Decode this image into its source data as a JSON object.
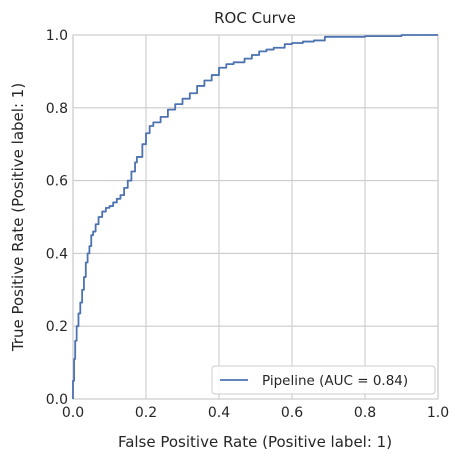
{
  "chart_data": {
    "type": "line",
    "title": "ROC Curve",
    "xlabel": "False Positive Rate (Positive label: 1)",
    "ylabel": "True Positive Rate (Positive label: 1)",
    "xlim": [
      0,
      1
    ],
    "ylim": [
      0,
      1
    ],
    "grid": true,
    "legend_position": "lower-right",
    "xticks": [
      "0.0",
      "0.2",
      "0.4",
      "0.6",
      "0.8",
      "1.0"
    ],
    "yticks": [
      "0.0",
      "0.2",
      "0.4",
      "0.6",
      "0.8",
      "1.0"
    ],
    "series": [
      {
        "name": "Pipeline (AUC = 0.84)",
        "color": "#4c72b0",
        "points": [
          [
            0.0,
            0.0
          ],
          [
            0.003,
            0.05
          ],
          [
            0.006,
            0.11
          ],
          [
            0.01,
            0.16
          ],
          [
            0.015,
            0.2
          ],
          [
            0.02,
            0.235
          ],
          [
            0.025,
            0.265
          ],
          [
            0.03,
            0.3
          ],
          [
            0.035,
            0.335
          ],
          [
            0.04,
            0.375
          ],
          [
            0.045,
            0.4
          ],
          [
            0.05,
            0.42
          ],
          [
            0.055,
            0.45
          ],
          [
            0.062,
            0.46
          ],
          [
            0.07,
            0.48
          ],
          [
            0.08,
            0.5
          ],
          [
            0.09,
            0.515
          ],
          [
            0.1,
            0.525
          ],
          [
            0.11,
            0.53
          ],
          [
            0.12,
            0.54
          ],
          [
            0.13,
            0.55
          ],
          [
            0.14,
            0.56
          ],
          [
            0.15,
            0.58
          ],
          [
            0.16,
            0.6
          ],
          [
            0.17,
            0.625
          ],
          [
            0.175,
            0.65
          ],
          [
            0.19,
            0.665
          ],
          [
            0.2,
            0.7
          ],
          [
            0.21,
            0.73
          ],
          [
            0.22,
            0.75
          ],
          [
            0.24,
            0.76
          ],
          [
            0.26,
            0.775
          ],
          [
            0.28,
            0.795
          ],
          [
            0.3,
            0.81
          ],
          [
            0.32,
            0.825
          ],
          [
            0.34,
            0.84
          ],
          [
            0.36,
            0.86
          ],
          [
            0.38,
            0.875
          ],
          [
            0.4,
            0.89
          ],
          [
            0.42,
            0.91
          ],
          [
            0.44,
            0.92
          ],
          [
            0.47,
            0.925
          ],
          [
            0.49,
            0.935
          ],
          [
            0.51,
            0.945
          ],
          [
            0.53,
            0.955
          ],
          [
            0.55,
            0.96
          ],
          [
            0.58,
            0.965
          ],
          [
            0.6,
            0.975
          ],
          [
            0.63,
            0.978
          ],
          [
            0.66,
            0.982
          ],
          [
            0.69,
            0.985
          ],
          [
            0.7,
            0.995
          ],
          [
            0.8,
            0.995
          ],
          [
            0.9,
            0.997
          ],
          [
            1.0,
            1.0
          ]
        ]
      }
    ]
  }
}
